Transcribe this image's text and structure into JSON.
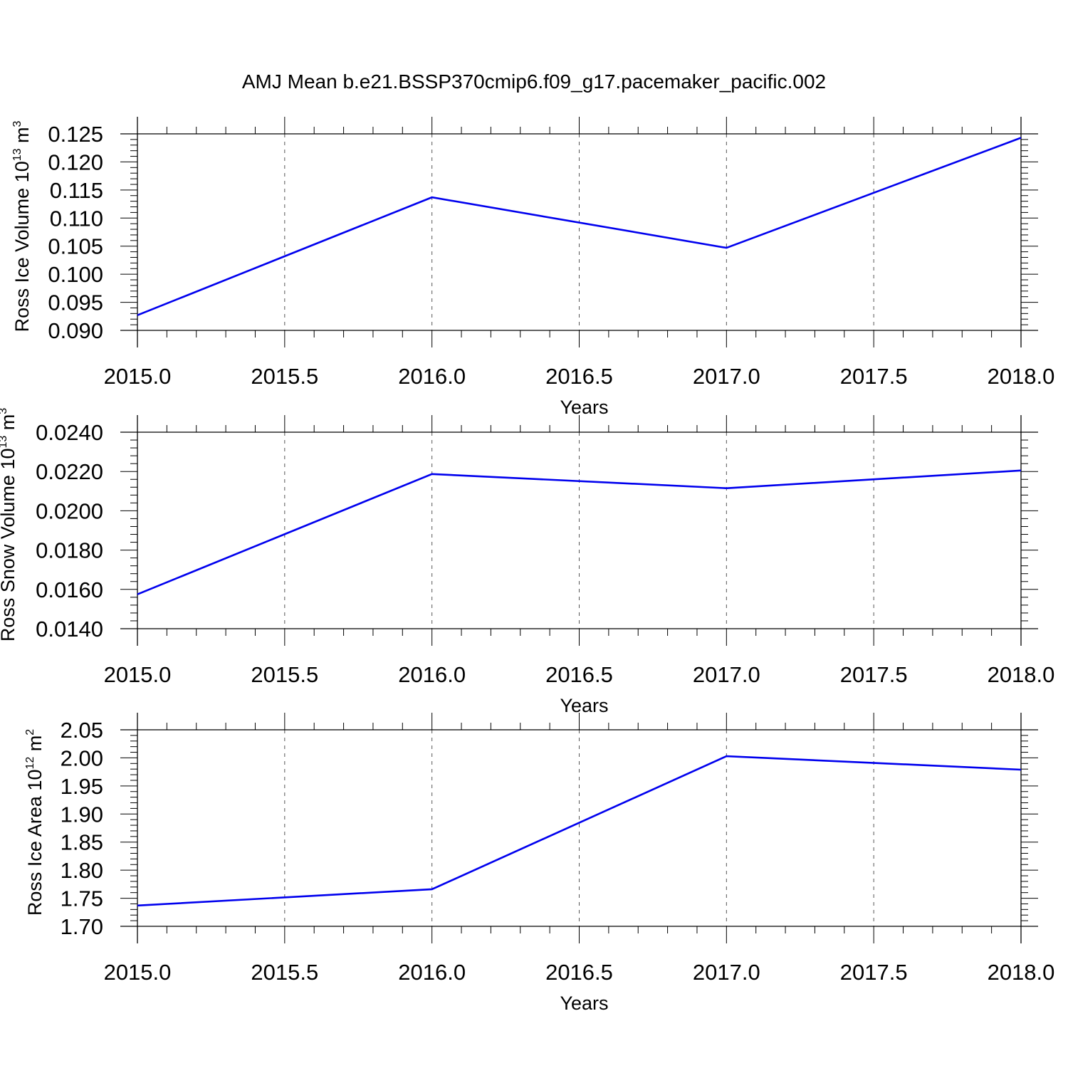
{
  "title": "AMJ Mean b.e21.BSSP370cmip6.f09_g17.pacemaker_pacific.002",
  "colors": {
    "line": "#0000ee",
    "axis": "#000000",
    "grid": "#555555"
  },
  "chart_data": [
    {
      "type": "line",
      "title": "",
      "xlabel": "Years",
      "ylabel": {
        "text": "Ross Ice Volume 10",
        "sup1": "13",
        "unit": " m",
        "sup2": "3"
      },
      "x": [
        2015,
        2016,
        2017,
        2018
      ],
      "series": [
        {
          "values": [
            0.0927,
            0.1137,
            0.1047,
            0.1243
          ]
        }
      ],
      "xlim": [
        2015,
        2018
      ],
      "ylim": [
        0.09,
        0.125
      ],
      "xticks": [
        "2015.0",
        "2015.5",
        "2016.0",
        "2016.5",
        "2017.0",
        "2017.5",
        "2018.0"
      ],
      "yticks": [
        "0.090",
        "0.095",
        "0.100",
        "0.105",
        "0.110",
        "0.115",
        "0.120",
        "0.125"
      ],
      "grid": "vertical dashed at major x ticks"
    },
    {
      "type": "line",
      "title": "",
      "xlabel": "Years",
      "ylabel": {
        "text": "Ross Snow Volume 10",
        "sup1": "13",
        "unit": " m",
        "sup2": "3"
      },
      "x": [
        2015,
        2016,
        2017,
        2018
      ],
      "series": [
        {
          "values": [
            0.01575,
            0.02187,
            0.02115,
            0.02205
          ]
        }
      ],
      "xlim": [
        2015,
        2018
      ],
      "ylim": [
        0.014,
        0.024
      ],
      "xticks": [
        "2015.0",
        "2015.5",
        "2016.0",
        "2016.5",
        "2017.0",
        "2017.5",
        "2018.0"
      ],
      "yticks": [
        "0.0140",
        "0.0160",
        "0.0180",
        "0.0200",
        "0.0220",
        "0.0240"
      ],
      "grid": "vertical dashed at major x ticks"
    },
    {
      "type": "line",
      "title": "",
      "xlabel": "Years",
      "ylabel": {
        "text": "Ross Ice Area 10",
        "sup1": "12",
        "unit": " m",
        "sup2": "2"
      },
      "x": [
        2015,
        2016,
        2017,
        2018
      ],
      "series": [
        {
          "values": [
            1.737,
            1.766,
            2.003,
            1.979
          ]
        }
      ],
      "xlim": [
        2015,
        2018
      ],
      "ylim": [
        1.7,
        2.05
      ],
      "xticks": [
        "2015.0",
        "2015.5",
        "2016.0",
        "2016.5",
        "2017.0",
        "2017.5",
        "2018.0"
      ],
      "yticks": [
        "1.70",
        "1.75",
        "1.80",
        "1.85",
        "1.90",
        "1.95",
        "2.00",
        "2.05"
      ],
      "grid": "vertical dashed at major x ticks"
    }
  ]
}
